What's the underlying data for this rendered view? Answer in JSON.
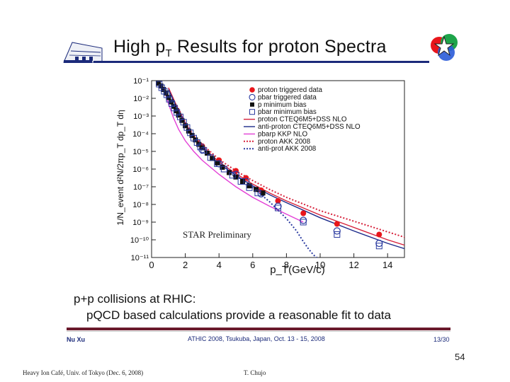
{
  "slide": {
    "title_prefix": "High p",
    "title_subscript": "T",
    "title_suffix": " Results for proton Spectra",
    "desc_line1": "p+p collisions at RHIC:",
    "desc_line2": "pQCD based calculations provide a reasonable fit to data",
    "inner_footer_author": "Nu Xu",
    "inner_footer_conference": "ATHIC 2008, Tsukuba, Japan, Oct. 13 - 15, 2008",
    "inner_footer_page": "13/30",
    "slide_number": "54",
    "footer_left": "Heavy Ion Café, Univ. of Tokyo (Dec. 6, 2008)",
    "footer_right": "T. Chujo",
    "logo_left_icon": "building-logo-icon",
    "logo_right_icon": "star-collaboration-logo-icon"
  },
  "chart_data": {
    "type": "scatter",
    "title": "",
    "xlabel": "p_T(GeV/c)",
    "ylabel": "1/N_event d²N/2πp_T dp_T dη",
    "xlim": [
      0,
      15
    ],
    "ylim_exp": [
      -11,
      -1
    ],
    "y_scale": "log",
    "x_ticks": [
      "0",
      "2",
      "4",
      "6",
      "8",
      "10",
      "12",
      "14"
    ],
    "y_ticks": [
      "10⁻¹",
      "10⁻²",
      "10⁻³",
      "10⁻⁴",
      "10⁻⁵",
      "10⁻⁶",
      "10⁻⁷",
      "10⁻⁸",
      "10⁻⁹",
      "10⁻¹⁰",
      "10⁻¹¹"
    ],
    "annotation": "STAR Preliminary",
    "legend_position": "top-right",
    "series": [
      {
        "name": "proton triggered data",
        "kind": "points",
        "marker": "filled-circle",
        "color": "#e8161b",
        "x": [
          3.0,
          4.0,
          5.0,
          5.6,
          6.5,
          7.5,
          9.0,
          11.0,
          13.5
        ],
        "y_exp": [
          -4.7,
          -5.5,
          -6.1,
          -6.5,
          -7.2,
          -7.8,
          -8.5,
          -9.1,
          -9.7
        ]
      },
      {
        "name": "pbar triggered data",
        "kind": "points",
        "marker": "open-circle",
        "color": "#2a3aa0",
        "x": [
          3.0,
          4.0,
          5.0,
          5.6,
          6.5,
          7.5,
          9.0,
          11.0,
          13.5
        ],
        "y_exp": [
          -4.9,
          -5.7,
          -6.3,
          -6.7,
          -7.4,
          -8.1,
          -8.9,
          -9.5,
          -10.2
        ]
      },
      {
        "name": "p minimum bias",
        "kind": "points",
        "marker": "filled-square",
        "color": "#111111",
        "x": [
          0.4,
          0.55,
          0.7,
          0.85,
          1.0,
          1.15,
          1.3,
          1.45,
          1.6,
          1.8,
          2.0,
          2.2,
          2.4,
          2.6,
          2.8,
          3.0,
          3.3,
          3.6,
          3.9,
          4.2,
          4.6,
          5.0,
          5.4,
          5.8,
          6.2,
          6.6
        ],
        "y_exp": [
          -1.15,
          -1.3,
          -1.5,
          -1.7,
          -1.95,
          -2.2,
          -2.45,
          -2.7,
          -2.95,
          -3.25,
          -3.55,
          -3.85,
          -4.1,
          -4.35,
          -4.6,
          -4.8,
          -5.1,
          -5.4,
          -5.65,
          -5.9,
          -6.2,
          -6.45,
          -6.7,
          -6.95,
          -7.15,
          -7.35
        ]
      },
      {
        "name": "pbar minimum bias",
        "kind": "points",
        "marker": "open-square",
        "color": "#2a3aa0",
        "x": [
          0.45,
          0.6,
          0.75,
          0.9,
          1.05,
          1.2,
          1.35,
          1.5,
          1.7,
          1.9,
          2.1,
          2.3,
          2.5,
          2.7,
          2.9,
          3.1,
          3.5,
          3.9,
          4.3,
          4.8,
          5.3,
          5.8,
          6.3,
          7.5,
          9.0,
          11.0,
          13.5
        ],
        "y_exp": [
          -1.2,
          -1.4,
          -1.6,
          -1.8,
          -2.05,
          -2.3,
          -2.55,
          -2.8,
          -3.05,
          -3.35,
          -3.65,
          -3.95,
          -4.25,
          -4.5,
          -4.75,
          -4.95,
          -5.35,
          -5.7,
          -6.0,
          -6.35,
          -6.7,
          -7.05,
          -7.35,
          -8.2,
          -9.0,
          -9.7,
          -10.35
        ]
      },
      {
        "name": "proton CTEQ6M5+DSS NLO",
        "kind": "line",
        "style": "solid",
        "color": "#d6203a",
        "x": [
          1.0,
          1.5,
          2.0,
          2.5,
          3.0,
          4.0,
          5.0,
          6.0,
          7.0,
          8.0,
          10.0,
          12.0,
          14.0,
          15.0
        ],
        "y_exp": [
          -1.4,
          -2.45,
          -3.4,
          -4.15,
          -4.7,
          -5.6,
          -6.25,
          -6.85,
          -7.35,
          -7.8,
          -8.6,
          -9.3,
          -10.0,
          -10.3
        ]
      },
      {
        "name": "anti-proton CTEQ6M5+DSS NLO",
        "kind": "line",
        "style": "solid",
        "color": "#1b2a8a",
        "x": [
          1.0,
          1.5,
          2.0,
          2.5,
          3.0,
          4.0,
          5.0,
          6.0,
          7.0,
          8.0,
          10.0,
          12.0,
          14.0,
          15.0
        ],
        "y_exp": [
          -1.5,
          -2.55,
          -3.5,
          -4.25,
          -4.8,
          -5.7,
          -6.35,
          -6.95,
          -7.45,
          -7.9,
          -8.75,
          -9.5,
          -10.2,
          -10.5
        ]
      },
      {
        "name": "pbarp KKP NLO",
        "kind": "line",
        "style": "solid",
        "color": "#e33fd6",
        "x": [
          0.7,
          1.0,
          1.3,
          1.6,
          2.0,
          2.5,
          3.0,
          4.0,
          5.0,
          6.0,
          7.0,
          8.0,
          9.0
        ],
        "y_exp": [
          -1.4,
          -2.3,
          -3.1,
          -3.75,
          -4.4,
          -5.0,
          -5.5,
          -6.3,
          -7.0,
          -7.6,
          -8.1,
          -8.55,
          -9.0
        ]
      },
      {
        "name": "proton AKK 2008",
        "kind": "line",
        "style": "dotted",
        "color": "#d6203a",
        "x": [
          1.5,
          2.0,
          2.5,
          3.0,
          4.0,
          5.0,
          6.0,
          7.0,
          8.0,
          10.0,
          12.0,
          14.0,
          15.0
        ],
        "y_exp": [
          -2.4,
          -3.35,
          -4.1,
          -4.6,
          -5.45,
          -6.1,
          -6.65,
          -7.15,
          -7.6,
          -8.35,
          -8.95,
          -9.55,
          -9.85
        ]
      },
      {
        "name": "anti-prot AKK 2008",
        "kind": "line",
        "style": "dotted",
        "color": "#2a3aa0",
        "x": [
          1.5,
          2.0,
          2.5,
          3.0,
          4.0,
          5.0,
          6.0,
          7.0,
          8.0,
          8.6,
          9.0,
          9.3,
          9.6,
          9.8
        ],
        "y_exp": [
          -2.5,
          -3.45,
          -4.2,
          -4.75,
          -5.65,
          -6.35,
          -7.05,
          -7.85,
          -8.8,
          -9.5,
          -10.1,
          -10.5,
          -10.85,
          -11.0
        ]
      }
    ]
  }
}
